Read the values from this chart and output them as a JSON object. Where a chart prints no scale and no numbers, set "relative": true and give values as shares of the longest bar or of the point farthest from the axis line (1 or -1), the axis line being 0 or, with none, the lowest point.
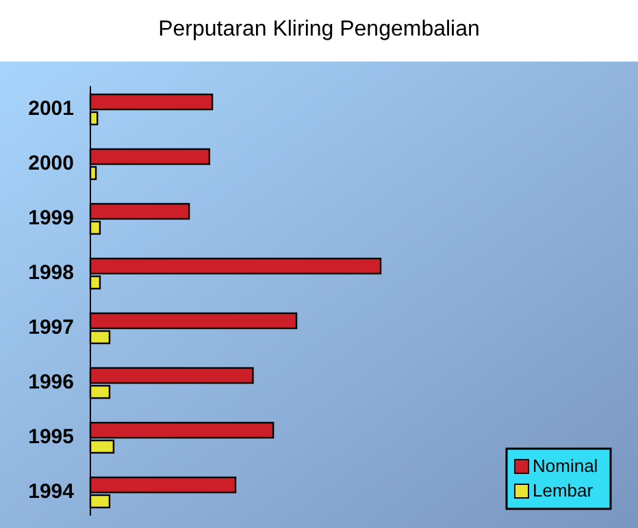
{
  "chart_data": {
    "type": "bar",
    "title": "Perputaran Kliring Pengembalian",
    "orientation": "horizontal",
    "relative": true,
    "categories": [
      "2001",
      "2000",
      "1999",
      "1998",
      "1997",
      "1996",
      "1995",
      "1994"
    ],
    "series": [
      {
        "name": "Nominal",
        "color": "#cc1f2a",
        "values": [
          0.42,
          0.41,
          0.34,
          1,
          0.71,
          0.56,
          0.63,
          0.5
        ]
      },
      {
        "name": "Lembar",
        "color": "#e6e633",
        "values": [
          0.024,
          0.019,
          0.033,
          0.033,
          0.066,
          0.066,
          0.08,
          0.066
        ]
      }
    ],
    "legend": "bottom right",
    "grid": false
  }
}
